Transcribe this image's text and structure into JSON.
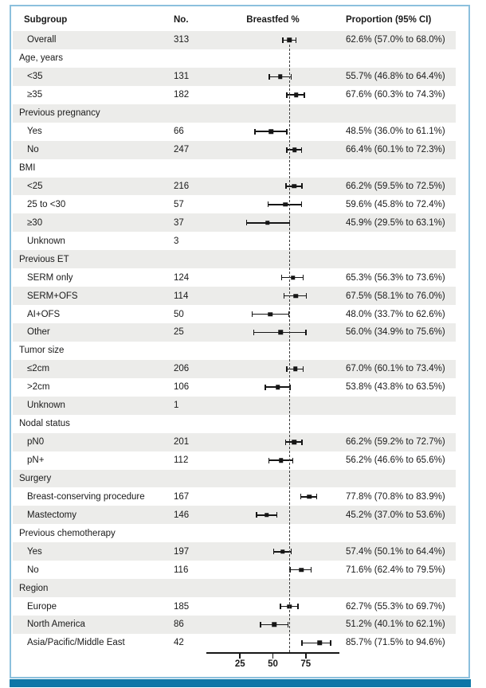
{
  "chart_data": {
    "type": "scatter",
    "variant": "forest-plot",
    "columns": {
      "subgroup": "Subgroup",
      "n": "No.",
      "plot": "Breastfed %",
      "ci": "Proportion (95% CI)"
    },
    "axis": {
      "min": 0,
      "max": 100,
      "ticks": [
        25,
        50,
        75
      ]
    },
    "reference_line": 62.6,
    "legend_position": "none",
    "grid": false,
    "rows": [
      {
        "label": "Overall",
        "indent": 1,
        "n": "313",
        "est": 62.6,
        "lo": 57.0,
        "hi": 68.0,
        "ci": "62.6% (57.0% to 68.0%)"
      },
      {
        "label": "Age, years",
        "indent": 0
      },
      {
        "label": "<35",
        "indent": 1,
        "n": "131",
        "est": 55.7,
        "lo": 46.8,
        "hi": 64.4,
        "ci": "55.7% (46.8% to 64.4%)"
      },
      {
        "label": "≥35",
        "indent": 1,
        "n": "182",
        "est": 67.6,
        "lo": 60.3,
        "hi": 74.3,
        "ci": "67.6% (60.3% to 74.3%)"
      },
      {
        "label": "Previous pregnancy",
        "indent": 0
      },
      {
        "label": "Yes",
        "indent": 1,
        "n": "66",
        "est": 48.5,
        "lo": 36.0,
        "hi": 61.1,
        "ci": "48.5% (36.0% to 61.1%)"
      },
      {
        "label": "No",
        "indent": 1,
        "n": "247",
        "est": 66.4,
        "lo": 60.1,
        "hi": 72.3,
        "ci": "66.4% (60.1% to 72.3%)"
      },
      {
        "label": "BMI",
        "indent": 0
      },
      {
        "label": "<25",
        "indent": 1,
        "n": "216",
        "est": 66.2,
        "lo": 59.5,
        "hi": 72.5,
        "ci": "66.2% (59.5% to 72.5%)"
      },
      {
        "label": "25 to <30",
        "indent": 1,
        "n": "57",
        "est": 59.6,
        "lo": 45.8,
        "hi": 72.4,
        "ci": "59.6% (45.8% to 72.4%)"
      },
      {
        "label": "≥30",
        "indent": 1,
        "n": "37",
        "est": 45.9,
        "lo": 29.5,
        "hi": 63.1,
        "ci": "45.9% (29.5% to 63.1%)"
      },
      {
        "label": "Unknown",
        "indent": 1,
        "n": "3"
      },
      {
        "label": "Previous ET",
        "indent": 0
      },
      {
        "label": "SERM only",
        "indent": 1,
        "n": "124",
        "est": 65.3,
        "lo": 56.3,
        "hi": 73.6,
        "ci": "65.3% (56.3% to 73.6%)"
      },
      {
        "label": "SERM+OFS",
        "indent": 1,
        "n": "114",
        "est": 67.5,
        "lo": 58.1,
        "hi": 76.0,
        "ci": "67.5% (58.1% to 76.0%)"
      },
      {
        "label": "AI+OFS",
        "indent": 1,
        "n": "50",
        "est": 48.0,
        "lo": 33.7,
        "hi": 62.6,
        "ci": "48.0% (33.7% to 62.6%)"
      },
      {
        "label": "Other",
        "indent": 1,
        "n": "25",
        "est": 56.0,
        "lo": 34.9,
        "hi": 75.6,
        "ci": "56.0% (34.9% to 75.6%)"
      },
      {
        "label": "Tumor size",
        "indent": 0
      },
      {
        "label": "≤2cm",
        "indent": 1,
        "n": "206",
        "est": 67.0,
        "lo": 60.1,
        "hi": 73.4,
        "ci": "67.0% (60.1% to 73.4%)"
      },
      {
        "label": ">2cm",
        "indent": 1,
        "n": "106",
        "est": 53.8,
        "lo": 43.8,
        "hi": 63.5,
        "ci": "53.8% (43.8% to 63.5%)"
      },
      {
        "label": "Unknown",
        "indent": 1,
        "n": "1"
      },
      {
        "label": "Nodal status",
        "indent": 0
      },
      {
        "label": "pN0",
        "indent": 1,
        "n": "201",
        "est": 66.2,
        "lo": 59.2,
        "hi": 72.7,
        "ci": "66.2% (59.2% to 72.7%)"
      },
      {
        "label": "pN+",
        "indent": 1,
        "n": "112",
        "est": 56.2,
        "lo": 46.6,
        "hi": 65.6,
        "ci": "56.2% (46.6% to 65.6%)"
      },
      {
        "label": "Surgery",
        "indent": 0
      },
      {
        "label": "Breast-conserving procedure",
        "indent": 1,
        "n": "167",
        "est": 77.8,
        "lo": 70.8,
        "hi": 83.9,
        "ci": "77.8% (70.8% to 83.9%)"
      },
      {
        "label": "Mastectomy",
        "indent": 1,
        "n": "146",
        "est": 45.2,
        "lo": 37.0,
        "hi": 53.6,
        "ci": "45.2% (37.0% to 53.6%)"
      },
      {
        "label": "Previous chemotherapy",
        "indent": 0
      },
      {
        "label": "Yes",
        "indent": 1,
        "n": "197",
        "est": 57.4,
        "lo": 50.1,
        "hi": 64.4,
        "ci": "57.4% (50.1% to 64.4%)"
      },
      {
        "label": "No",
        "indent": 1,
        "n": "116",
        "est": 71.6,
        "lo": 62.4,
        "hi": 79.5,
        "ci": "71.6% (62.4% to 79.5%)"
      },
      {
        "label": "Region",
        "indent": 0
      },
      {
        "label": "Europe",
        "indent": 1,
        "n": "185",
        "est": 62.7,
        "lo": 55.3,
        "hi": 69.7,
        "ci": "62.7% (55.3% to 69.7%)"
      },
      {
        "label": "North America",
        "indent": 1,
        "n": "86",
        "est": 51.2,
        "lo": 40.1,
        "hi": 62.1,
        "ci": "51.2% (40.1% to 62.1%)"
      },
      {
        "label": "Asia/Pacific/Middle East",
        "indent": 1,
        "n": "42",
        "est": 85.7,
        "lo": 71.5,
        "hi": 94.6,
        "ci": "85.7% (71.5% to 94.6%)"
      }
    ],
    "colors": {
      "shaded_row": "#ececea",
      "frame_border": "#8cc0dd",
      "bottom_bar": "#0d76a7",
      "marker": "#161616",
      "text": "#1a1a1a"
    }
  }
}
